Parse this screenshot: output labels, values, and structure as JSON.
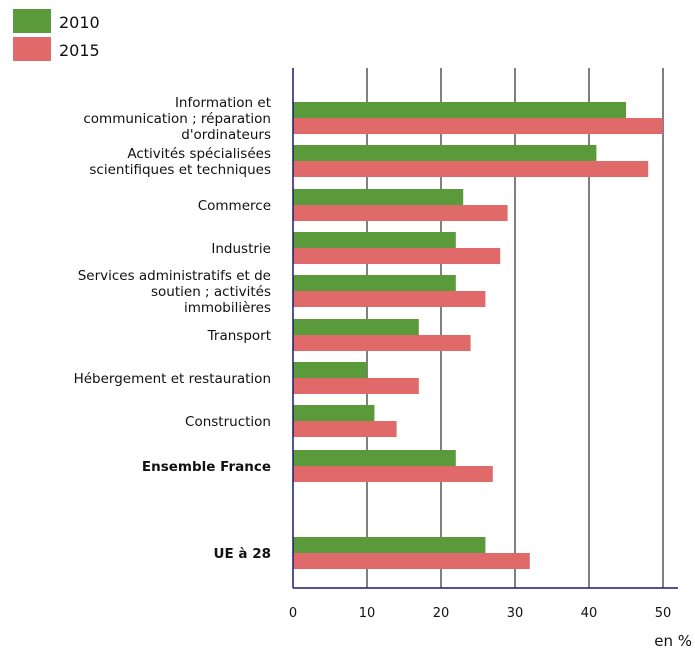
{
  "chart_data": {
    "type": "bar",
    "orientation": "horizontal",
    "title": "",
    "xlabel": "en %",
    "ylabel": "",
    "xlim": [
      0,
      52
    ],
    "xticks": [
      "0",
      "10",
      "20",
      "30",
      "40",
      "50"
    ],
    "grid": true,
    "legend_position": "top-left",
    "categories": [
      [
        "Information et",
        "communication ; réparation",
        "d'ordinateurs"
      ],
      [
        "Activités spécialisées",
        "scientifiques et techniques"
      ],
      [
        "Commerce"
      ],
      [
        "Industrie"
      ],
      [
        "Services administratifs et de",
        "soutien ; activités",
        "immobilières"
      ],
      [
        "Transport"
      ],
      [
        "Hébergement et restauration"
      ],
      [
        "Construction"
      ],
      [
        "Ensemble France"
      ],
      [
        "UE à 28"
      ]
    ],
    "bold_categories": [
      8,
      9
    ],
    "series": [
      {
        "name": "2010",
        "color": "#5a9a3a",
        "values": [
          45,
          41,
          23,
          22,
          22,
          17,
          10,
          11,
          22,
          26
        ]
      },
      {
        "name": "2015",
        "color": "#e06a6a",
        "values": [
          50,
          48,
          29,
          28,
          26,
          24,
          17,
          14,
          27,
          32
        ]
      }
    ]
  }
}
